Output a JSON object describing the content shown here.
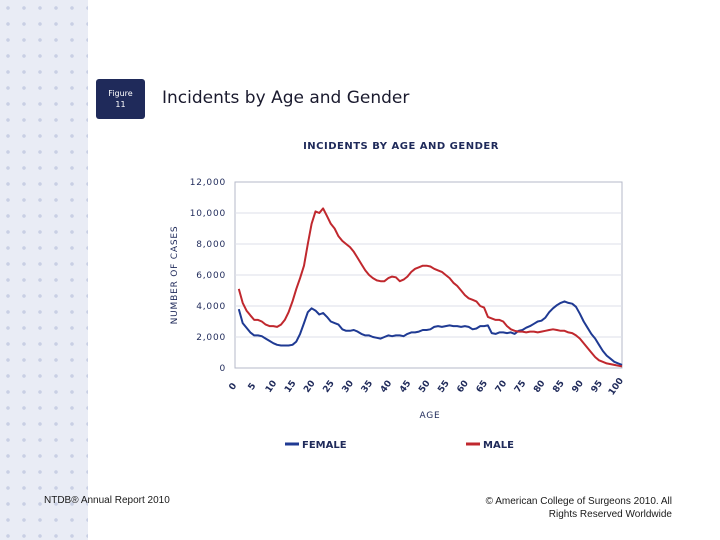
{
  "slide": {
    "figure_label_line1": "Figure",
    "figure_label_line2": "11",
    "title": "Incidents by Age and Gender",
    "footer_left": "NTDB® Annual Report 2010",
    "footer_right_line1": "© American College of Surgeons 2010.  All",
    "footer_right_line2": "Rights Reserved Worldwide"
  },
  "chart_data": {
    "type": "line",
    "title": "INCIDENTS BY AGE AND GENDER",
    "xlabel": "AGE",
    "ylabel": "NUMBER OF CASES",
    "xlim": [
      0,
      101
    ],
    "ylim": [
      0,
      12000
    ],
    "y_ticks": [
      0,
      2000,
      4000,
      6000,
      8000,
      10000,
      12000
    ],
    "y_tick_labels": [
      "0",
      "2,000",
      "4,000",
      "6,000",
      "8,000",
      "10,000",
      "12,000"
    ],
    "x_ticks": [
      0,
      5,
      10,
      15,
      20,
      25,
      30,
      35,
      40,
      45,
      50,
      55,
      60,
      65,
      70,
      75,
      80,
      85,
      90,
      95,
      100
    ],
    "x_tick_labels": [
      "0",
      "5",
      "10",
      "15",
      "20",
      "25",
      "30",
      "35",
      "40",
      "45",
      "50",
      "55",
      "60",
      "65",
      "70",
      "75",
      "80",
      "85",
      "90",
      "95",
      "100"
    ],
    "legend_position": "bottom",
    "series": [
      {
        "name": "FEMALE",
        "color": "#1f3a93",
        "x": [
          1,
          2,
          3,
          4,
          5,
          6,
          7,
          8,
          9,
          10,
          11,
          12,
          13,
          14,
          15,
          16,
          17,
          18,
          19,
          20,
          21,
          22,
          23,
          24,
          25,
          26,
          27,
          28,
          29,
          30,
          31,
          32,
          33,
          34,
          35,
          36,
          37,
          38,
          39,
          40,
          41,
          42,
          43,
          44,
          45,
          46,
          47,
          48,
          49,
          50,
          51,
          52,
          53,
          54,
          55,
          56,
          57,
          58,
          59,
          60,
          61,
          62,
          63,
          64,
          65,
          66,
          67,
          68,
          69,
          70,
          71,
          72,
          73,
          74,
          75,
          76,
          77,
          78,
          79,
          80,
          81,
          82,
          83,
          84,
          85,
          86,
          87,
          88,
          89,
          90,
          91,
          92,
          93,
          94,
          95,
          96,
          97,
          98,
          99,
          100,
          101
        ],
        "values": [
          3800,
          2900,
          2600,
          2300,
          2100,
          2100,
          2050,
          1900,
          1750,
          1600,
          1500,
          1450,
          1450,
          1450,
          1500,
          1700,
          2200,
          2900,
          3600,
          3850,
          3700,
          3450,
          3550,
          3300,
          3000,
          2900,
          2800,
          2500,
          2400,
          2400,
          2450,
          2350,
          2200,
          2100,
          2100,
          2000,
          1950,
          1900,
          2000,
          2100,
          2050,
          2100,
          2100,
          2050,
          2200,
          2300,
          2300,
          2350,
          2450,
          2450,
          2500,
          2650,
          2700,
          2650,
          2700,
          2750,
          2700,
          2700,
          2650,
          2700,
          2650,
          2500,
          2550,
          2700,
          2700,
          2750,
          2250,
          2200,
          2300,
          2300,
          2250,
          2300,
          2200,
          2400,
          2450,
          2600,
          2700,
          2850,
          3000,
          3050,
          3250,
          3600,
          3850,
          4050,
          4200,
          4300,
          4200,
          4150,
          3950,
          3500,
          3000,
          2600,
          2200,
          1900,
          1500,
          1100,
          800,
          600,
          400,
          300,
          200
        ]
      },
      {
        "name": "MALE",
        "color": "#c0282e",
        "x": [
          1,
          2,
          3,
          4,
          5,
          6,
          7,
          8,
          9,
          10,
          11,
          12,
          13,
          14,
          15,
          16,
          17,
          18,
          19,
          20,
          21,
          22,
          23,
          24,
          25,
          26,
          27,
          28,
          29,
          30,
          31,
          32,
          33,
          34,
          35,
          36,
          37,
          38,
          39,
          40,
          41,
          42,
          43,
          44,
          45,
          46,
          47,
          48,
          49,
          50,
          51,
          52,
          53,
          54,
          55,
          56,
          57,
          58,
          59,
          60,
          61,
          62,
          63,
          64,
          65,
          66,
          67,
          68,
          69,
          70,
          71,
          72,
          73,
          74,
          75,
          76,
          77,
          78,
          79,
          80,
          81,
          82,
          83,
          84,
          85,
          86,
          87,
          88,
          89,
          90,
          91,
          92,
          93,
          94,
          95,
          96,
          97,
          98,
          99,
          100,
          101
        ],
        "values": [
          5100,
          4200,
          3700,
          3400,
          3100,
          3100,
          3000,
          2800,
          2700,
          2700,
          2650,
          2800,
          3100,
          3600,
          4300,
          5100,
          5800,
          6600,
          8000,
          9300,
          10100,
          10000,
          10300,
          9800,
          9300,
          9000,
          8500,
          8200,
          8000,
          7800,
          7500,
          7100,
          6700,
          6300,
          6000,
          5800,
          5650,
          5600,
          5600,
          5800,
          5900,
          5850,
          5600,
          5700,
          5900,
          6200,
          6400,
          6500,
          6600,
          6600,
          6550,
          6400,
          6300,
          6200,
          6000,
          5800,
          5500,
          5300,
          5000,
          4700,
          4500,
          4400,
          4300,
          4000,
          3900,
          3300,
          3200,
          3100,
          3100,
          3000,
          2700,
          2500,
          2400,
          2350,
          2350,
          2300,
          2350,
          2350,
          2300,
          2350,
          2400,
          2450,
          2500,
          2450,
          2400,
          2400,
          2300,
          2250,
          2100,
          1900,
          1600,
          1300,
          1000,
          700,
          500,
          400,
          300,
          250,
          200,
          150,
          100
        ]
      }
    ]
  }
}
